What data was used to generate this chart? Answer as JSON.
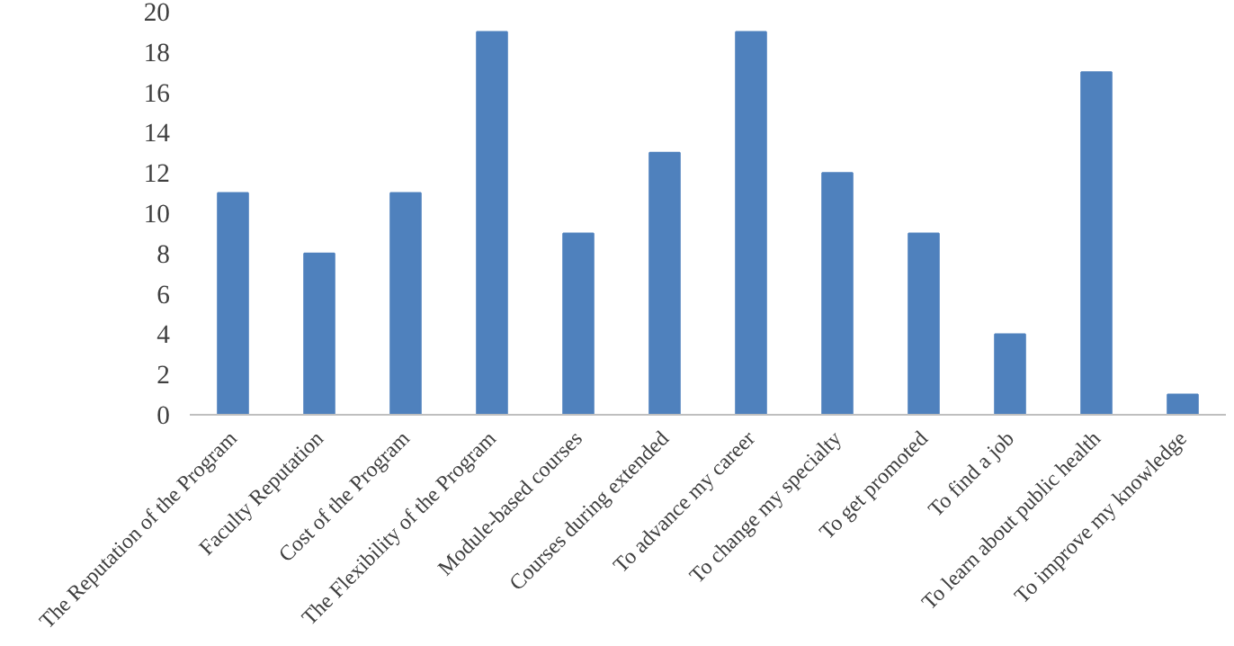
{
  "chart_data": {
    "type": "bar",
    "categories": [
      "The Reputation of the Program",
      "Faculty Reputation",
      "Cost of the Program",
      "The Flexibility of the Program",
      "Module-based courses",
      "Courses during extended",
      "To advance my career",
      "To change my specialty",
      "To get promoted",
      "To find a job",
      "To learn about public health",
      "To improve my knowledge"
    ],
    "values": [
      11,
      8,
      11,
      19,
      9,
      13,
      19,
      12,
      9,
      4,
      17,
      1
    ],
    "color": "#4f81bd",
    "ylim": [
      0,
      20
    ],
    "yticks": [
      0,
      2,
      4,
      6,
      8,
      10,
      12,
      14,
      16,
      18,
      20
    ],
    "grid": false
  }
}
